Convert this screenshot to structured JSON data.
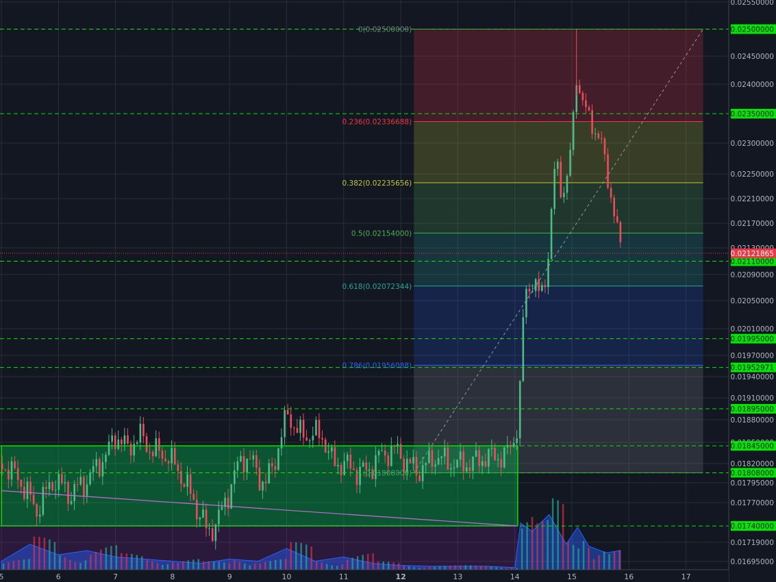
{
  "chart_data": {
    "type": "candlestick",
    "x_ticks": [
      "5",
      "6",
      "7",
      "8",
      "9",
      "10",
      "11",
      "12",
      "13",
      "14",
      "15",
      "16",
      "17"
    ],
    "x_bold": [
      "12"
    ],
    "x_range": [
      5,
      17.7
    ],
    "y_range": [
      0.01685,
      0.0255
    ],
    "price_axis_labels": [
      "0.02550000",
      "0.02450000",
      "0.02400000",
      "0.02300000",
      "0.02250000",
      "0.02210000",
      "0.02170000",
      "0.02130000",
      "0.02090000",
      "0.02050000",
      "0.02010000",
      "0.01970000",
      "0.01940000",
      "0.01910000",
      "0.01880000",
      "0.01850000",
      "0.01820000",
      "0.01795000",
      "0.01770000",
      "0.01719000",
      "0.01695000"
    ],
    "horizontal_lines": [
      {
        "price": "0.02500000",
        "value": 0.025,
        "color": "#00e600"
      },
      {
        "price": "0.02350000",
        "value": 0.0235,
        "color": "#00e600"
      },
      {
        "price": "0.02110000",
        "value": 0.0211,
        "color": "#00e600"
      },
      {
        "price": "0.01995000",
        "value": 0.01995,
        "color": "#00e600"
      },
      {
        "price": "0.01952971",
        "value": 0.01952971,
        "color": "#00e600"
      },
      {
        "price": "0.01895000",
        "value": 0.01895,
        "color": "#00e600"
      },
      {
        "price": "0.01845000",
        "value": 0.01845,
        "color": "#00e600"
      },
      {
        "price": "0.01808000",
        "value": 0.01808,
        "color": "#00e600"
      },
      {
        "price": "0.01740000",
        "value": 0.0174,
        "color": "#00e600"
      }
    ],
    "last_price": {
      "price": "0.02121865",
      "value": 0.02121865,
      "color": "#f23645"
    },
    "fibonacci": {
      "x_start": 12.23,
      "x_end": 17.3,
      "high": 0.025,
      "low": 0.01808,
      "levels": [
        {
          "label": "0(0.02500000)",
          "value": 0.025,
          "color": "#787b86"
        },
        {
          "label": "0.236(0.02336688)",
          "value": 0.02336688,
          "color": "#f23645"
        },
        {
          "label": "0.382(0.02235656)",
          "value": 0.02235656,
          "color": "#c0ca33"
        },
        {
          "label": "0.5(0.02154000)",
          "value": 0.02154,
          "color": "#4caf50"
        },
        {
          "label": "0.618(0.02072344)",
          "value": 0.02072344,
          "color": "#26a69a"
        },
        {
          "label": "0.786(0.01956088)",
          "value": 0.01956088,
          "color": "#2962ff"
        },
        {
          "label": "1(0.01808000)",
          "value": 0.01808,
          "color": "#787b86"
        }
      ]
    },
    "range_box": {
      "x_start": 5,
      "x_end": 14.05,
      "top": 0.01845,
      "bottom": 0.0174,
      "color": "#00c853"
    },
    "trendline": {
      "x1": 5,
      "y1": 0.01785,
      "x2": 14.03,
      "y2": 0.0174,
      "color": "#c86bd6"
    },
    "price_path": [
      [
        5.0,
        0.0182
      ],
      [
        5.3,
        0.018
      ],
      [
        5.6,
        0.0176
      ],
      [
        5.9,
        0.018
      ],
      [
        6.2,
        0.0178
      ],
      [
        6.5,
        0.018
      ],
      [
        6.8,
        0.0183
      ],
      [
        7.0,
        0.0186
      ],
      [
        7.2,
        0.0184
      ],
      [
        7.4,
        0.0186
      ],
      [
        7.6,
        0.0184
      ],
      [
        7.9,
        0.0183
      ],
      [
        8.1,
        0.0181
      ],
      [
        8.3,
        0.0178
      ],
      [
        8.5,
        0.0175
      ],
      [
        8.6,
        0.0173
      ],
      [
        8.8,
        0.0175
      ],
      [
        9.0,
        0.0179
      ],
      [
        9.2,
        0.0183
      ],
      [
        9.4,
        0.0182
      ],
      [
        9.6,
        0.0179
      ],
      [
        9.8,
        0.0183
      ],
      [
        10.0,
        0.0189
      ],
      [
        10.2,
        0.0186
      ],
      [
        10.4,
        0.0186
      ],
      [
        10.6,
        0.0186
      ],
      [
        10.8,
        0.0182
      ],
      [
        11.0,
        0.0182
      ],
      [
        11.2,
        0.0181
      ],
      [
        11.4,
        0.0181
      ],
      [
        11.6,
        0.0183
      ],
      [
        11.9,
        0.0184
      ],
      [
        12.1,
        0.0182
      ],
      [
        12.3,
        0.0181
      ],
      [
        12.6,
        0.0183
      ],
      [
        12.9,
        0.0182
      ],
      [
        13.2,
        0.0182
      ],
      [
        13.5,
        0.0183
      ],
      [
        13.8,
        0.0183
      ],
      [
        13.95,
        0.0185
      ],
      [
        14.05,
        0.0188
      ],
      [
        14.1,
        0.0196
      ],
      [
        14.15,
        0.0206
      ],
      [
        14.3,
        0.0208
      ],
      [
        14.4,
        0.0206
      ],
      [
        14.5,
        0.0207
      ],
      [
        14.6,
        0.0215
      ],
      [
        14.7,
        0.0228
      ],
      [
        14.8,
        0.0222
      ],
      [
        14.9,
        0.0224
      ],
      [
        15.0,
        0.0232
      ],
      [
        15.05,
        0.0242
      ],
      [
        15.1,
        0.024
      ],
      [
        15.2,
        0.0236
      ],
      [
        15.3,
        0.0234
      ],
      [
        15.4,
        0.0232
      ],
      [
        15.5,
        0.023
      ],
      [
        15.6,
        0.0225
      ],
      [
        15.7,
        0.022
      ],
      [
        15.85,
        0.02122
      ]
    ],
    "volume_profile": [
      [
        5.0,
        0.2
      ],
      [
        5.5,
        0.6
      ],
      [
        6.0,
        0.35
      ],
      [
        6.5,
        0.45
      ],
      [
        7.0,
        0.3
      ],
      [
        7.5,
        0.25
      ],
      [
        8.0,
        0.2
      ],
      [
        8.5,
        0.15
      ],
      [
        9.0,
        0.25
      ],
      [
        9.5,
        0.2
      ],
      [
        10.0,
        0.5
      ],
      [
        10.5,
        0.2
      ],
      [
        11.0,
        0.3
      ],
      [
        11.5,
        0.15
      ],
      [
        12.0,
        0.1
      ],
      [
        12.5,
        0.08
      ],
      [
        13.0,
        0.08
      ],
      [
        13.5,
        0.08
      ],
      [
        14.0,
        0.05
      ],
      [
        14.1,
        1.1
      ],
      [
        14.3,
        0.9
      ],
      [
        14.6,
        1.3
      ],
      [
        14.9,
        0.6
      ],
      [
        15.1,
        1.0
      ],
      [
        15.3,
        0.55
      ],
      [
        15.6,
        0.4
      ],
      [
        15.85,
        0.45
      ]
    ]
  }
}
